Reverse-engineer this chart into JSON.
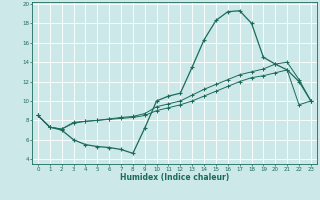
{
  "xlabel": "Humidex (Indice chaleur)",
  "bg_color": "#cce8e8",
  "line_color": "#1a6b5a",
  "grid_color": "#ffffff",
  "xlim": [
    -0.5,
    23.5
  ],
  "ylim": [
    3.5,
    20.2
  ],
  "xticks": [
    0,
    1,
    2,
    3,
    4,
    5,
    6,
    7,
    8,
    9,
    10,
    11,
    12,
    13,
    14,
    15,
    16,
    17,
    18,
    19,
    20,
    21,
    22,
    23
  ],
  "yticks": [
    4,
    6,
    8,
    10,
    12,
    14,
    16,
    18,
    20
  ],
  "line1_x": [
    0,
    1,
    2,
    3,
    4,
    5,
    6,
    7,
    8,
    9,
    10,
    11,
    12,
    13,
    14,
    15,
    16,
    17,
    18,
    19,
    20,
    21,
    22,
    23
  ],
  "line1_y": [
    8.5,
    7.3,
    7.0,
    6.0,
    5.5,
    5.3,
    5.2,
    5.0,
    4.6,
    7.2,
    10.0,
    10.5,
    10.8,
    13.5,
    16.3,
    18.3,
    19.2,
    19.3,
    18.0,
    14.5,
    13.8,
    13.2,
    12.0,
    10.0
  ],
  "line2_x": [
    0,
    1,
    2,
    3,
    4,
    5,
    6,
    7,
    8,
    9,
    10,
    11,
    12,
    13,
    14,
    15,
    16,
    17,
    18,
    19,
    20,
    21,
    22,
    23
  ],
  "line2_y": [
    8.5,
    7.3,
    7.1,
    7.8,
    7.9,
    8.0,
    8.1,
    8.2,
    8.3,
    8.5,
    9.0,
    9.3,
    9.6,
    10.0,
    10.5,
    11.0,
    11.5,
    12.0,
    12.4,
    12.6,
    12.9,
    13.2,
    9.6,
    10.0
  ],
  "line3_x": [
    0,
    1,
    2,
    3,
    4,
    5,
    6,
    7,
    8,
    9,
    10,
    11,
    12,
    13,
    14,
    15,
    16,
    17,
    18,
    19,
    20,
    21,
    22,
    23
  ],
  "line3_y": [
    8.5,
    7.3,
    7.1,
    7.7,
    7.9,
    8.0,
    8.15,
    8.3,
    8.4,
    8.7,
    9.4,
    9.7,
    10.0,
    10.6,
    11.2,
    11.7,
    12.2,
    12.7,
    13.0,
    13.3,
    13.8,
    14.0,
    12.2,
    10.0
  ]
}
